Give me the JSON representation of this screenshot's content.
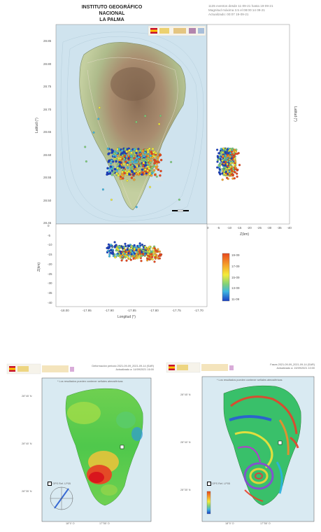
{
  "header": {
    "title_line1": "INSTITUTO GEOGRÁFICO NACIONAL",
    "title_line2": "LA PALMA",
    "info_line1": "1135 eventos desde 11-09-21 hasta 19-09-21",
    "info_line2": "Magnitud máxima 3.5 el 08:00:14 09-21",
    "info_line3": "Actualizado: 00:07 19-09-21"
  },
  "main_map": {
    "lat_ticks": [
      "28.85",
      "28.80",
      "28.75",
      "28.70",
      "28.65",
      "28.60",
      "28.55",
      "28.50",
      "28.45"
    ],
    "lat_label": "Latitud (°)",
    "lon_ticks": [
      "-18.00",
      "-17.95",
      "-17.90",
      "-17.85",
      "-17.80",
      "-17.75",
      "-17.70"
    ],
    "lon_label": "Longitud (°)",
    "depth_ticks": [
      "0",
      "-5",
      "-10",
      "-15",
      "-20",
      "-25",
      "-30",
      "-35",
      "-40"
    ],
    "depth_label": "Z(km)",
    "right_depth_ticks": [
      "0",
      "-5",
      "-10",
      "-15",
      "-20",
      "-25",
      "-30",
      "-35",
      "-40"
    ],
    "right_depth_label": "Z(km)",
    "right_lat_label": "Latitud (°)",
    "colors": {
      "sea": "#cfe3ee",
      "land": "#a8b98a",
      "relief": "#9a7f63",
      "panel": "#ffffff"
    }
  },
  "colorbar": {
    "labels": [
      "19-09",
      "17-09",
      "15-09",
      "13-09",
      "11-09"
    ],
    "colors": [
      "#e8481e",
      "#f6a32a",
      "#f3ec3a",
      "#7fd07a",
      "#3fb6e0",
      "#1a3fc4"
    ]
  },
  "deformation_left": {
    "header_line1": "Deformación periodo 2021-09-09_2021-09-14 (SAR)",
    "header_line2": "Actualizado a: 14/09/2021 16:00",
    "note": "* Los resultados pueden contener señales atmosféricas",
    "lat_ticks": [
      "28°45' N",
      "28°40' N",
      "28°35' N"
    ],
    "lon_ticks": [
      "18°0' O",
      "17°55' O"
    ],
    "legend": "GPS Ref. LP05"
  },
  "deformation_right": {
    "header_line1": "Fases 2021-09-09_2021-09-14 (SAR)",
    "header_line2": "Actualizado a: 15/09/2021 10:00",
    "note": "* Los resultados pueden contener señales atmosféricas",
    "lat_ticks": [
      "28°45' N",
      "28°40' N",
      "28°35' N"
    ],
    "lon_ticks": [
      "18°0' O",
      "17°55' O"
    ],
    "legend": "GPS Ref. LP05"
  }
}
